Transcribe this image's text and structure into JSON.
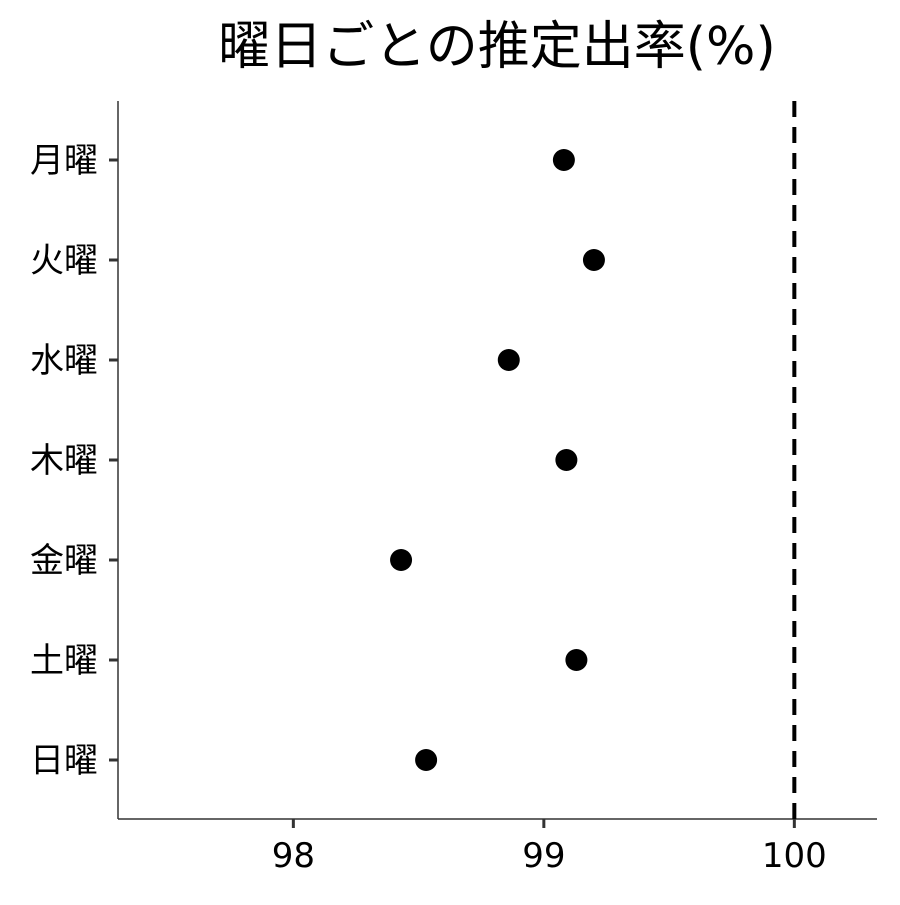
{
  "chart_data": {
    "type": "scatter",
    "title": "曜日ごとの推定出率(%)",
    "xlabel": "",
    "ylabel": "",
    "categories": [
      "月曜",
      "火曜",
      "水曜",
      "木曜",
      "金曜",
      "土曜",
      "日曜"
    ],
    "values": [
      99.08,
      99.2,
      98.86,
      99.09,
      98.43,
      99.13,
      98.53
    ],
    "x_ticks": [
      98,
      99,
      100
    ],
    "xlim": [
      97.3,
      100.33
    ],
    "reference_line": {
      "x": 100,
      "style": "dashed",
      "color": "#000000"
    },
    "point_color": "#000000",
    "axis_color": "#333333",
    "grid": false,
    "legend": "none"
  }
}
